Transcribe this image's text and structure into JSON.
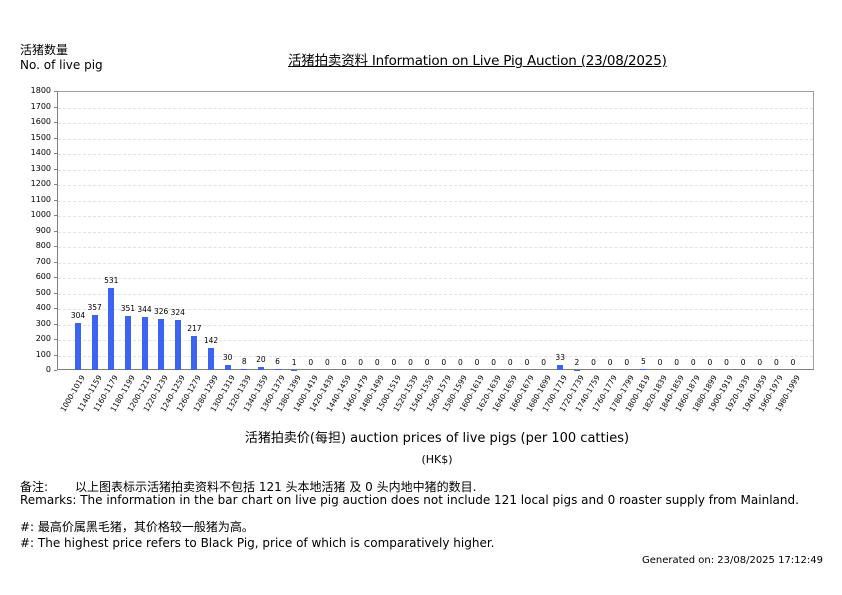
{
  "header": {
    "ylabel_cn": "活猪数量",
    "ylabel_en": "No. of live pig",
    "title": "活猪拍卖资料 Information on Live Pig Auction (23/08/2025)"
  },
  "axis": {
    "xlabel": "活猪拍卖价(每担) auction prices of live pigs (per 100 catties)",
    "unit": "(HK$)",
    "yticks": [
      "1800",
      "1700",
      "1600",
      "1500",
      "1400",
      "1300",
      "1200",
      "1100",
      "1000",
      "900",
      "800",
      "700",
      "600",
      "500",
      "400",
      "300",
      "200",
      "100",
      "0"
    ]
  },
  "notes": {
    "remark_cn_label": "备注:",
    "remark_cn": "以上图表标示活猪拍卖资料不包括 121 头本地活猪 及 0 头内地中猪的数目.",
    "remark_en": "Remarks: The information in the bar chart on live pig auction does not include 121 local pigs and 0 roaster supply from Mainland.",
    "hash_cn": "#: 最高价属黑毛猪，其价格较一般猪为高。",
    "hash_en": "#: The highest price refers to Black Pig, price of which is comparatively higher.",
    "generated": "Generated on: 23/08/2025 17:12:49"
  },
  "colors": {
    "bar": "#3c64f0",
    "grid": "#e2e2e2",
    "axis": "#808080"
  },
  "chart_data": {
    "type": "bar",
    "title": "活猪拍卖资料 Information on Live Pig Auction (23/08/2025)",
    "xlabel": "活猪拍卖价(每担) auction prices of live pigs (per 100 catties) (HK$)",
    "ylabel": "活猪数量 No. of live pig",
    "ylim": [
      0,
      1800
    ],
    "grid": true,
    "categories": [
      "1000-1019",
      "1140-1159",
      "1160-1179",
      "1180-1199",
      "1200-1219",
      "1220-1239",
      "1240-1259",
      "1260-1279",
      "1280-1299",
      "1300-1319",
      "1320-1339",
      "1340-1359",
      "1360-1379",
      "1380-1399",
      "1400-1419",
      "1420-1439",
      "1440-1459",
      "1460-1479",
      "1480-1499",
      "1500-1519",
      "1520-1539",
      "1540-1559",
      "1560-1579",
      "1580-1599",
      "1600-1619",
      "1620-1639",
      "1640-1659",
      "1660-1679",
      "1680-1699",
      "1700-1719",
      "1720-1739",
      "1740-1759",
      "1760-1779",
      "1780-1799",
      "1800-1819",
      "1820-1839",
      "1840-1859",
      "1860-1879",
      "1880-1899",
      "1900-1919",
      "1920-1939",
      "1940-1959",
      "1960-1979",
      "1980-1999"
    ],
    "values": [
      304,
      357,
      531,
      351,
      344,
      326,
      324,
      217,
      142,
      30,
      8,
      20,
      6,
      1,
      0,
      0,
      0,
      0,
      0,
      0,
      0,
      0,
      0,
      0,
      0,
      0,
      0,
      0,
      0,
      33,
      2,
      0,
      0,
      0,
      5,
      0,
      0,
      0,
      0,
      0,
      0,
      0,
      0,
      0
    ]
  }
}
